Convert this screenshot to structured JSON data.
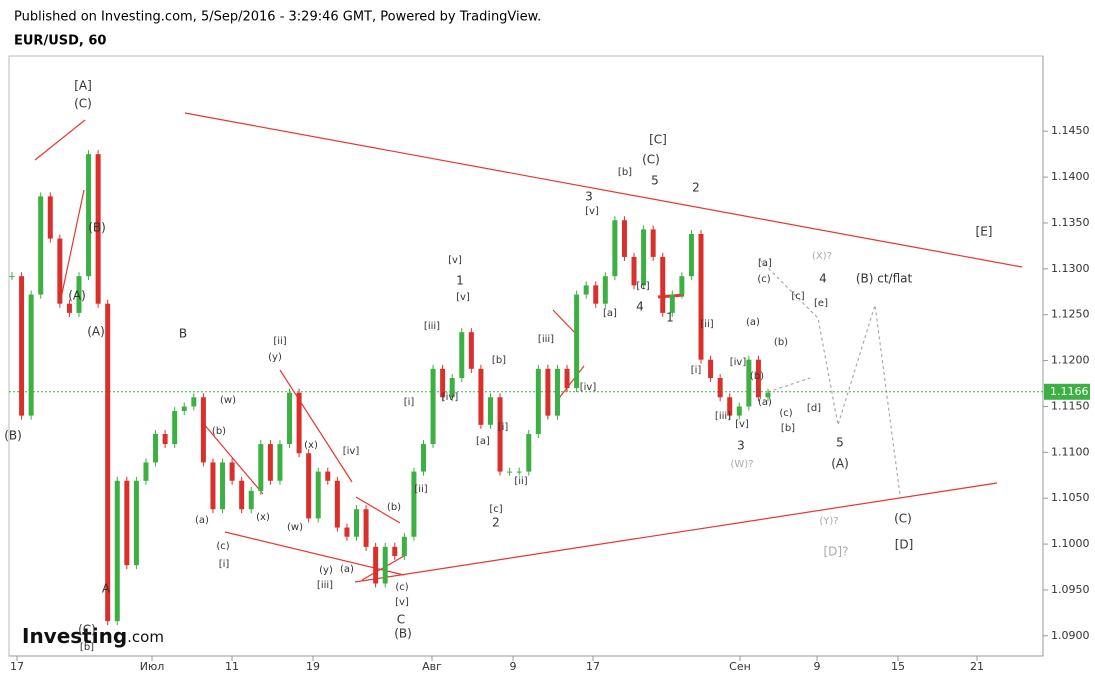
{
  "header": {
    "published": "Published on Investing.com, 5/Sep/2016 - 3:29:46 GMT, Powered by TradingView.",
    "symbol": "EUR/USD, 60"
  },
  "logo": {
    "brand": "Investing",
    "suffix": ".com"
  },
  "chart_data": {
    "type": "candlestick",
    "values": [
      1.1292,
      1.114,
      1.1272,
      1.1379,
      1.1333,
      1.1262,
      1.1252,
      1.1292,
      1.1425,
      1.1262,
      1.0916,
      1.1069,
      1.0977,
      1.1069,
      1.1089,
      1.112,
      1.1109,
      1.1145,
      1.115,
      1.116,
      1.1089,
      1.1038,
      1.1089,
      1.1069,
      1.1038,
      1.1058,
      1.1109,
      1.1069,
      1.1109,
      1.1165,
      1.1099,
      1.1028,
      1.1079,
      1.1069,
      1.1018,
      1.1008,
      1.1038,
      1.0997,
      1.0957,
      1.0997,
      1.0987,
      1.1008,
      1.1079,
      1.1109,
      1.1191,
      1.116,
      1.1181,
      1.1231,
      1.1191,
      1.113,
      1.116,
      1.1079,
      1.1079,
      1.1079,
      1.112,
      1.1191,
      1.114,
      1.1191,
      1.117,
      1.1272,
      1.1282,
      1.1262,
      1.1292,
      1.1353,
      1.1313,
      1.1282,
      1.1343,
      1.1313,
      1.1252,
      1.1272,
      1.1292,
      1.1338,
      1.1201,
      1.1181,
      1.116,
      1.114,
      1.115,
      1.1201,
      1.116,
      1.1165
    ],
    "ylim": [
      1.0878,
      1.1532
    ],
    "yticks": [
      {
        "value": 1.09,
        "label": "1.0900"
      },
      {
        "value": 1.095,
        "label": "1.0950"
      },
      {
        "value": 1.1,
        "label": "1.1000"
      },
      {
        "value": 1.105,
        "label": "1.1050"
      },
      {
        "value": 1.11,
        "label": "1.1100"
      },
      {
        "value": 1.115,
        "label": "1.1150"
      },
      {
        "value": 1.12,
        "label": "1.1200"
      },
      {
        "value": 1.125,
        "label": "1.1250"
      },
      {
        "value": 1.13,
        "label": "1.1300"
      },
      {
        "value": 1.135,
        "label": "1.1350"
      },
      {
        "value": 1.14,
        "label": "1.1400"
      },
      {
        "value": 1.145,
        "label": "1.1450"
      }
    ],
    "last_price": 1.1166,
    "xticks": [
      "17",
      "Июл",
      "11",
      "19",
      "Авг",
      "9",
      "17",
      "Сен",
      "9",
      "15",
      "21"
    ],
    "up_color": "#3cb043",
    "down_color": "#d9302b",
    "annotations": [
      "[A]",
      "(C)",
      "(B)",
      "(A)",
      "(A)",
      "(B)",
      "A",
      "(C)",
      "[b]",
      "B",
      "(w)",
      "(b)",
      "(a)",
      "(c)",
      "[i]",
      "(x)",
      "[ii]",
      "(y)",
      "(x)",
      "(w)",
      "[iv]",
      "(y)",
      "[iii]",
      "(a)",
      "(b)",
      "(c)",
      "[v]",
      "C",
      "(B)",
      "[ii]",
      "[i]",
      "[iii]",
      "[iv]",
      "[v]",
      "1",
      "[v]",
      "[b]",
      "[a]",
      "[i]",
      "[c]",
      "2",
      "[ii]",
      "[iii]",
      "[iv]",
      "3",
      "[v]",
      "[b]",
      "[a]",
      "[c]",
      "4",
      "5",
      "(C)",
      "[C]",
      "2",
      "1",
      "[ii]",
      "[i]",
      "[iii]",
      "[iv]",
      "[v]",
      "3",
      "(W)?",
      "(a)",
      "(b)",
      "(b)",
      "(a)",
      "[a]",
      "(c)",
      "(X)?",
      "4",
      "[c]",
      "[e]",
      "(B) ct/flat",
      "[E]",
      "(c)",
      "[d]",
      "[b]",
      "5",
      "(A)",
      "(Y)?",
      "[D]?",
      "(C)",
      "[D]"
    ]
  }
}
